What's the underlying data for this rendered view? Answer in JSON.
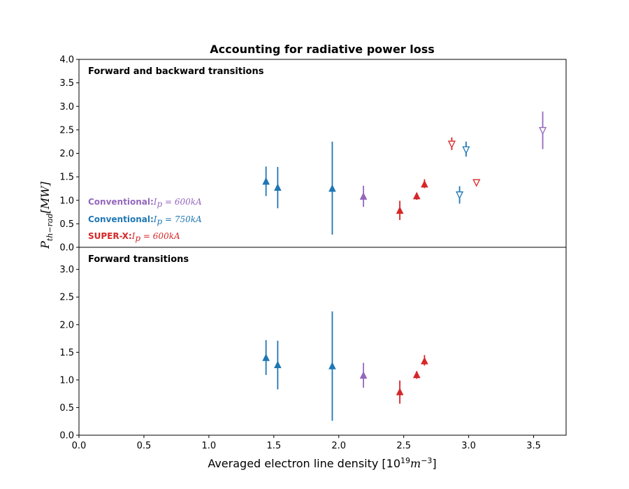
{
  "chart_data": {
    "type": "scatter",
    "title": "Accounting for radiative power loss",
    "xlabel": "Averaged electron line density [10",
    "xlabel_sup": "19",
    "xlabel_unit": "m",
    "xlabel_unit_sup": "−3",
    "xlabel_end": "]",
    "ylabel": "P",
    "ylabel_sub": "th−rad",
    "ylabel_unit": "[MW]",
    "xlim": [
      0,
      3.75
    ],
    "x_ticks": [
      0.0,
      0.5,
      1.0,
      1.5,
      2.0,
      2.5,
      3.0,
      3.5
    ],
    "x_tick_labels": [
      "0.0",
      "0.5",
      "1.0",
      "1.5",
      "2.0",
      "2.5",
      "3.0",
      "3.5"
    ],
    "grid": false,
    "colors": {
      "conv600": "#9467bd",
      "conv750": "#1f77b4",
      "superx": "#d62728"
    },
    "panels": [
      {
        "label": "Forward and backward transitions",
        "ylim": [
          0,
          4.0
        ],
        "y_ticks": [
          0.0,
          0.5,
          1.0,
          1.5,
          2.0,
          2.5,
          3.0,
          3.5,
          4.0
        ],
        "y_tick_labels": [
          "0.0",
          "0.5",
          "1.0",
          "1.5",
          "2.0",
          "2.5",
          "3.0",
          "3.5",
          "4.0"
        ],
        "legend": [
          {
            "bold": "Conventional:",
            "math": "I",
            "math_sub": "p",
            "math_rest": " = 600kA",
            "color": "#9467bd"
          },
          {
            "bold": "Conventional:",
            "math": "I",
            "math_sub": "p",
            "math_rest": " = 750kA",
            "color": "#1f77b4"
          },
          {
            "bold": "SUPER-X:",
            "math": "I",
            "math_sub": "p",
            "math_rest": " = 600kA",
            "color": "#d62728"
          }
        ],
        "series": [
          {
            "key": "conv750",
            "color": "#1f77b4",
            "marker": "triangle-up",
            "filled": true,
            "points": [
              {
                "x": 1.44,
                "y": 1.4,
                "lo": 1.09,
                "hi": 1.72
              },
              {
                "x": 1.53,
                "y": 1.27,
                "lo": 0.83,
                "hi": 1.71
              },
              {
                "x": 1.95,
                "y": 1.25,
                "lo": 0.27,
                "hi": 2.25
              }
            ]
          },
          {
            "key": "conv750",
            "color": "#1f77b4",
            "marker": "triangle-down",
            "filled": false,
            "points": [
              {
                "x": 2.93,
                "y": 1.12,
                "lo": 0.93,
                "hi": 1.3
              },
              {
                "x": 2.98,
                "y": 2.08,
                "lo": 1.93,
                "hi": 2.25
              }
            ]
          },
          {
            "key": "conv600",
            "color": "#9467bd",
            "marker": "triangle-up",
            "filled": true,
            "points": [
              {
                "x": 2.19,
                "y": 1.08,
                "lo": 0.86,
                "hi": 1.31
              }
            ]
          },
          {
            "key": "conv600",
            "color": "#9467bd",
            "marker": "triangle-down",
            "filled": false,
            "points": [
              {
                "x": 3.57,
                "y": 2.49,
                "lo": 2.09,
                "hi": 2.89
              }
            ]
          },
          {
            "key": "superx",
            "color": "#d62728",
            "marker": "triangle-up",
            "filled": true,
            "points": [
              {
                "x": 2.47,
                "y": 0.78,
                "lo": 0.58,
                "hi": 0.99
              },
              {
                "x": 2.6,
                "y": 1.09,
                "lo": 1.01,
                "hi": 1.16
              },
              {
                "x": 2.66,
                "y": 1.34,
                "lo": 1.26,
                "hi": 1.45
              }
            ]
          },
          {
            "key": "superx",
            "color": "#d62728",
            "marker": "triangle-down",
            "filled": false,
            "points": [
              {
                "x": 2.87,
                "y": 2.2,
                "lo": 2.07,
                "hi": 2.34
              },
              {
                "x": 3.06,
                "y": 1.38,
                "lo": 1.34,
                "hi": 1.4
              }
            ]
          }
        ]
      },
      {
        "label": "Forward transitions",
        "ylim": [
          0,
          3.4
        ],
        "y_ticks": [
          0.0,
          0.5,
          1.0,
          1.5,
          2.0,
          2.5,
          3.0
        ],
        "y_tick_labels": [
          "0.0",
          "0.5",
          "1.0",
          "1.5",
          "2.0",
          "2.5",
          "3.0"
        ],
        "legend": [],
        "series": [
          {
            "key": "conv750",
            "color": "#1f77b4",
            "marker": "triangle-up",
            "filled": true,
            "points": [
              {
                "x": 1.44,
                "y": 1.4,
                "lo": 1.09,
                "hi": 1.72
              },
              {
                "x": 1.53,
                "y": 1.27,
                "lo": 0.83,
                "hi": 1.71
              },
              {
                "x": 1.95,
                "y": 1.25,
                "lo": 0.26,
                "hi": 2.24
              }
            ]
          },
          {
            "key": "conv600",
            "color": "#9467bd",
            "marker": "triangle-up",
            "filled": true,
            "points": [
              {
                "x": 2.19,
                "y": 1.08,
                "lo": 0.86,
                "hi": 1.31
              }
            ]
          },
          {
            "key": "superx",
            "color": "#d62728",
            "marker": "triangle-up",
            "filled": true,
            "points": [
              {
                "x": 2.47,
                "y": 0.78,
                "lo": 0.57,
                "hi": 0.99
              },
              {
                "x": 2.6,
                "y": 1.09,
                "lo": 1.02,
                "hi": 1.16
              },
              {
                "x": 2.66,
                "y": 1.34,
                "lo": 1.26,
                "hi": 1.45
              }
            ]
          }
        ]
      }
    ]
  }
}
